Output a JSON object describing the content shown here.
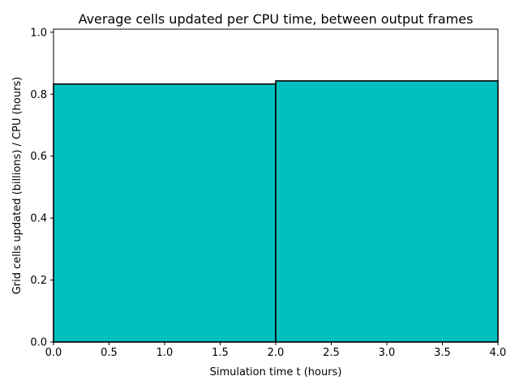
{
  "chart_data": {
    "type": "bar",
    "title": "Average cells updated per CPU time, between output frames",
    "xlabel": "Simulation time t (hours)",
    "ylabel": "Grid cells updated (billions) / CPU (hours)",
    "xlim": [
      0.0,
      4.0
    ],
    "ylim": [
      0.0,
      1.01
    ],
    "xticks": [
      "0.0",
      "0.5",
      "1.0",
      "1.5",
      "2.0",
      "2.5",
      "3.0",
      "3.5",
      "4.0"
    ],
    "yticks": [
      "0.0",
      "0.2",
      "0.4",
      "0.6",
      "0.8",
      "1.0"
    ],
    "bins": [
      {
        "x_start": 0.0,
        "x_end": 2.0,
        "value": 0.833
      },
      {
        "x_start": 2.0,
        "x_end": 4.0,
        "value": 0.843
      }
    ],
    "bar_color": "#00bfbf",
    "edge_color": "#000000",
    "grid": false,
    "legend": "none"
  }
}
